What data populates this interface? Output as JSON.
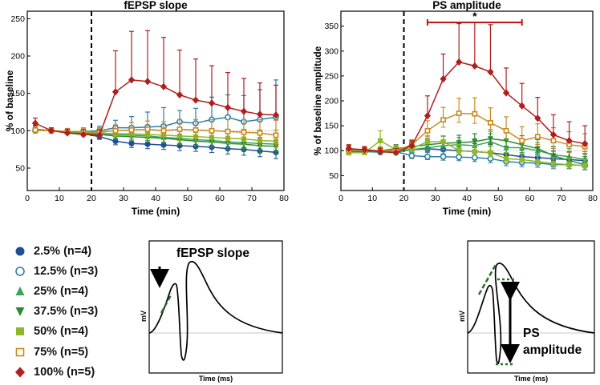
{
  "chart_data": [
    {
      "type": "line",
      "title": "fEPSP slope",
      "xlabel": "Time (min)",
      "ylabel": "% of baseline",
      "xlim": [
        0,
        80
      ],
      "ylim": [
        20,
        260
      ],
      "xticks": [
        0,
        10,
        20,
        30,
        40,
        50,
        60,
        70,
        80
      ],
      "yticks": [
        50,
        100,
        150,
        200,
        250
      ],
      "x": [
        2.5,
        7.5,
        12.5,
        17.5,
        22.5,
        27.5,
        32.5,
        37.5,
        42.5,
        47.5,
        52.5,
        57.5,
        62.5,
        67.5,
        72.5,
        77.5
      ],
      "baseline_reference": 100,
      "stimulus_time": 20,
      "series": [
        {
          "name": "2.5% (n=4)",
          "values": [
            102,
            100,
            98,
            96,
            92,
            86,
            83,
            82,
            81,
            80,
            79,
            78,
            76,
            75,
            73,
            71
          ],
          "errors": [
            5,
            3,
            4,
            5,
            6,
            8,
            9,
            10,
            10,
            11,
            11,
            12,
            12,
            13,
            13,
            14
          ]
        },
        {
          "name": "12.5% (n=3)",
          "values": [
            100,
            100,
            98,
            99,
            100,
            104,
            104,
            105,
            106,
            112,
            110,
            115,
            118,
            112,
            115,
            118
          ],
          "errors": [
            5,
            3,
            4,
            5,
            6,
            10,
            15,
            20,
            25,
            15,
            20,
            30,
            30,
            35,
            40,
            50
          ]
        },
        {
          "name": "25% (n=4)",
          "values": [
            101,
            100,
            99,
            98,
            96,
            95,
            94,
            93,
            91,
            90,
            88,
            87,
            85,
            84,
            83,
            82
          ],
          "errors": [
            5,
            3,
            4,
            5,
            6,
            8,
            9,
            10,
            10,
            11,
            12,
            12,
            13,
            13,
            14,
            15
          ]
        },
        {
          "name": "37.5% (n=3)",
          "values": [
            100,
            100,
            98,
            97,
            95,
            93,
            92,
            91,
            90,
            88,
            86,
            85,
            83,
            82,
            80,
            79
          ],
          "errors": [
            5,
            3,
            4,
            5,
            6,
            8,
            9,
            10,
            11,
            11,
            12,
            13,
            14,
            15,
            16,
            17
          ]
        },
        {
          "name": "50% (n=4)",
          "values": [
            100,
            100,
            99,
            98,
            97,
            96,
            96,
            95,
            94,
            93,
            92,
            91,
            90,
            89,
            87,
            86
          ],
          "errors": [
            5,
            3,
            4,
            5,
            6,
            7,
            8,
            9,
            10,
            10,
            11,
            12,
            12,
            13,
            14,
            15
          ]
        },
        {
          "name": "75% (n=5)",
          "values": [
            101,
            100,
            99,
            99,
            98,
            100,
            101,
            102,
            100,
            102,
            101,
            100,
            99,
            98,
            97,
            94
          ],
          "errors": [
            5,
            3,
            4,
            5,
            6,
            8,
            10,
            11,
            12,
            13,
            14,
            15,
            16,
            17,
            18,
            20
          ]
        },
        {
          "name": "100% (n=5)",
          "values": [
            110,
            100,
            97,
            95,
            94,
            152,
            168,
            166,
            159,
            148,
            141,
            137,
            131,
            126,
            122,
            121
          ],
          "errors": [
            7,
            4,
            5,
            6,
            7,
            55,
            65,
            68,
            66,
            60,
            55,
            50,
            47,
            44,
            42,
            40
          ]
        }
      ]
    },
    {
      "type": "line",
      "title": "PS amplitude",
      "xlabel": "Time (min)",
      "ylabel": "% of baseline amplitude",
      "xlim": [
        0,
        80
      ],
      "ylim": [
        20,
        380
      ],
      "xticks": [
        0,
        10,
        20,
        30,
        40,
        50,
        60,
        70,
        80
      ],
      "yticks": [
        50,
        100,
        150,
        200,
        250,
        300,
        350
      ],
      "x": [
        2.5,
        7.5,
        12.5,
        17.5,
        22.5,
        27.5,
        32.5,
        37.5,
        42.5,
        47.5,
        52.5,
        57.5,
        62.5,
        67.5,
        72.5,
        77.5
      ],
      "baseline_reference": 100,
      "stimulus_time": 20,
      "significance": {
        "label": "*",
        "from": 27.5,
        "to": 57.5
      },
      "series": [
        {
          "name": "2.5% (n=4)",
          "values": [
            102,
            101,
            100,
            98,
            102,
            104,
            102,
            100,
            98,
            96,
            92,
            88,
            86,
            84,
            82,
            80
          ],
          "errors": [
            8,
            6,
            7,
            8,
            10,
            12,
            14,
            15,
            16,
            16,
            16,
            15,
            15,
            15,
            15,
            14
          ]
        },
        {
          "name": "12.5% (n=3)",
          "values": [
            100,
            98,
            97,
            98,
            90,
            88,
            88,
            87,
            86,
            84,
            78,
            76,
            75,
            72,
            72,
            70
          ],
          "errors": [
            8,
            6,
            7,
            8,
            10,
            10,
            12,
            12,
            13,
            14,
            14,
            14,
            14,
            14,
            14,
            14
          ]
        },
        {
          "name": "25% (n=4)",
          "values": [
            98,
            97,
            99,
            97,
            102,
            106,
            110,
            112,
            110,
            118,
            106,
            106,
            100,
            92,
            88,
            82
          ],
          "errors": [
            8,
            6,
            7,
            8,
            10,
            12,
            12,
            14,
            14,
            16,
            16,
            16,
            16,
            16,
            16,
            16
          ]
        },
        {
          "name": "37.5% (n=3)",
          "values": [
            97,
            98,
            100,
            104,
            108,
            112,
            115,
            116,
            118,
            124,
            120,
            112,
            104,
            90,
            80,
            72
          ],
          "errors": [
            8,
            6,
            7,
            8,
            10,
            12,
            14,
            15,
            16,
            18,
            18,
            18,
            18,
            18,
            18,
            16
          ]
        },
        {
          "name": "50% (n=4)",
          "values": [
            96,
            96,
            120,
            102,
            104,
            118,
            118,
            100,
            98,
            96,
            84,
            82,
            78,
            74,
            72,
            70
          ],
          "errors": [
            8,
            6,
            20,
            8,
            10,
            12,
            12,
            12,
            12,
            12,
            12,
            12,
            12,
            12,
            12,
            12
          ]
        },
        {
          "name": "75% (n=5)",
          "values": [
            100,
            102,
            100,
            100,
            112,
            140,
            162,
            175,
            174,
            156,
            140,
            120,
            128,
            120,
            112,
            108
          ],
          "errors": [
            8,
            6,
            7,
            8,
            10,
            20,
            25,
            30,
            32,
            30,
            28,
            28,
            26,
            26,
            26,
            26
          ]
        },
        {
          "name": "100% (n=5)",
          "values": [
            104,
            102,
            98,
            96,
            110,
            170,
            244,
            278,
            270,
            258,
            216,
            190,
            165,
            132,
            120,
            114
          ],
          "errors": [
            8,
            6,
            7,
            8,
            10,
            40,
            50,
            77,
            88,
            95,
            50,
            45,
            42,
            40,
            38,
            36
          ]
        }
      ]
    }
  ],
  "legend": {
    "items": [
      {
        "label": "2.5% (n=4)",
        "color": "#1f4e96",
        "marker": "circle"
      },
      {
        "label": "12.5% (n=3)",
        "color": "#2e7fa8",
        "marker": "open-circle"
      },
      {
        "label": "25% (n=4)",
        "color": "#3aa35a",
        "marker": "triangle-up"
      },
      {
        "label": "37.5% (n=3)",
        "color": "#2e8a2e",
        "marker": "triangle-down"
      },
      {
        "label": "50% (n=4)",
        "color": "#8db82a",
        "marker": "square"
      },
      {
        "label": "75% (n=5)",
        "color": "#c88a1e",
        "marker": "open-square"
      },
      {
        "label": "100% (n=5)",
        "color": "#b01e1e",
        "marker": "diamond"
      }
    ]
  },
  "schematics": {
    "left": {
      "title": "fEPSP slope",
      "ylabel": "mV",
      "xlabel": "Time (ms)",
      "icon": "down-arrow-icon"
    },
    "right": {
      "label_line1": "PS",
      "label_line2": "amplitude",
      "ylabel": "mV",
      "xlabel": "Time (ms)",
      "icon": "double-arrow-icon"
    }
  },
  "colors": {
    "axis": "#000000",
    "dashed_stim": "#000000",
    "significance": "#c0161a",
    "baseline_line": "#bbbbbb"
  }
}
